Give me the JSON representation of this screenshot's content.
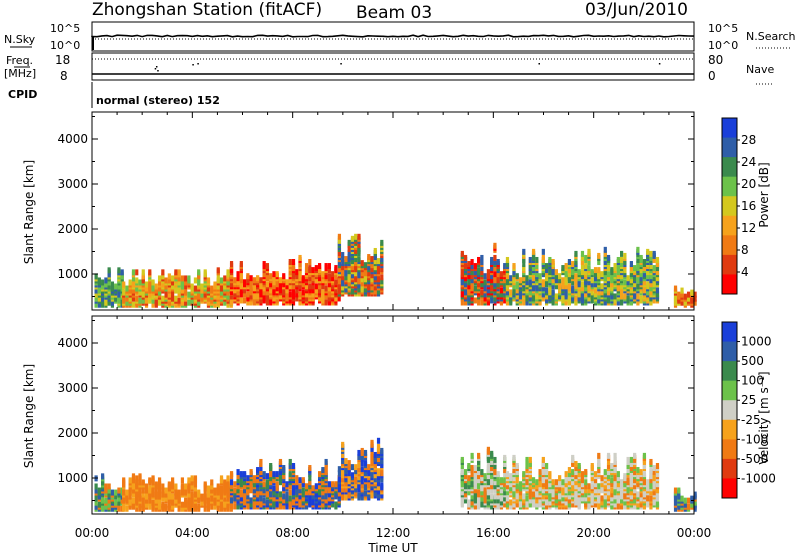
{
  "header": {
    "station": "Zhongshan Station (fitACF)",
    "beam": "Beam 03",
    "date": "03/Jun/2010"
  },
  "aux": {
    "nsky_label": "N.Sky",
    "nsky_ticks": [
      "10^5",
      "10^0"
    ],
    "nsearch_label": "N.Search",
    "nsearch_ticks": [
      "10^5",
      "10^0"
    ],
    "freq_label_line1": "Freq.",
    "freq_label_line2": "[MHz]",
    "freq_ticks": [
      "18",
      "8"
    ],
    "nave_label": "Nave",
    "nave_ticks": [
      "80",
      "0"
    ],
    "cpid_label": "CPID",
    "cpid_text": "normal (stereo) 152"
  },
  "x_axis": {
    "ticks": [
      "00:00",
      "04:00",
      "08:00",
      "12:00",
      "16:00",
      "20:00",
      "00:00"
    ],
    "label": "Time UT"
  },
  "colors": {
    "power_scale": [
      "#1a3fd9",
      "#2f5ea8",
      "#3a8a4d",
      "#6cc24a",
      "#d4c81e",
      "#f6a21c",
      "#f07a14",
      "#e03a10",
      "#ff0000"
    ],
    "velocity_scale": [
      "#1a3fd9",
      "#2f5ea8",
      "#3a8a4d",
      "#6cc24a",
      "#cfcfc6",
      "#f6a21c",
      "#f07a14",
      "#e03a10",
      "#ff0000"
    ]
  },
  "chart_data": [
    {
      "type": "heatmap",
      "name": "power",
      "ylabel": "Slant Range [km]",
      "y_ticks": [
        "1000",
        "2000",
        "3000",
        "4000"
      ],
      "ylim": [
        200,
        4600
      ],
      "xlim": [
        0,
        24
      ],
      "colorbar_label": "Power [dB]",
      "colorbar_ticks": [
        "4",
        "8",
        "12",
        "16",
        "20",
        "24",
        "28"
      ],
      "colorbar_range": [
        0,
        32
      ],
      "blobs": [
        {
          "t0": 0.1,
          "t1": 1.2,
          "r0": 250,
          "r1": 1050,
          "c": [
            1,
            2,
            3,
            4
          ]
        },
        {
          "t0": 1.2,
          "t1": 5.5,
          "r0": 250,
          "r1": 1050,
          "c": [
            3,
            4,
            5,
            6,
            7
          ]
        },
        {
          "t0": 5.5,
          "t1": 9.8,
          "r0": 300,
          "r1": 1300,
          "c": [
            5,
            6,
            7,
            8
          ]
        },
        {
          "t0": 9.8,
          "t1": 11.5,
          "r0": 500,
          "r1": 1900,
          "c": [
            1,
            2,
            4,
            6,
            7
          ]
        },
        {
          "t0": 14.7,
          "t1": 16.5,
          "r0": 300,
          "r1": 1600,
          "c": [
            1,
            2,
            6,
            7,
            8
          ]
        },
        {
          "t0": 16.5,
          "t1": 22.5,
          "r0": 300,
          "r1": 1500,
          "c": [
            1,
            2,
            3,
            4,
            5
          ]
        },
        {
          "t0": 23.2,
          "t1": 24.0,
          "r0": 250,
          "r1": 700,
          "c": [
            4,
            6,
            7
          ]
        }
      ]
    },
    {
      "type": "heatmap",
      "name": "velocity",
      "ylabel": "Slant Range [km]",
      "y_ticks": [
        "1000",
        "2000",
        "3000",
        "4000"
      ],
      "ylim": [
        200,
        4600
      ],
      "xlim": [
        0,
        24
      ],
      "colorbar_label": "Velocity [m s⁻¹]",
      "colorbar_ticks": [
        "1000",
        "500",
        "100",
        "25",
        "-25",
        "-100",
        "-500",
        "-1000"
      ],
      "blobs": [
        {
          "t0": 0.1,
          "t1": 1.2,
          "r0": 250,
          "r1": 1050,
          "c": [
            1,
            2,
            3,
            6
          ]
        },
        {
          "t0": 1.2,
          "t1": 5.5,
          "r0": 250,
          "r1": 1050,
          "c": [
            6,
            6,
            6,
            5
          ]
        },
        {
          "t0": 5.5,
          "t1": 9.8,
          "r0": 300,
          "r1": 1300,
          "c": [
            0,
            1,
            2,
            6,
            6
          ]
        },
        {
          "t0": 9.8,
          "t1": 11.5,
          "r0": 500,
          "r1": 1900,
          "c": [
            0,
            1,
            6,
            5
          ]
        },
        {
          "t0": 14.7,
          "t1": 16.5,
          "r0": 300,
          "r1": 1600,
          "c": [
            2,
            3,
            4,
            4,
            6
          ]
        },
        {
          "t0": 16.5,
          "t1": 22.5,
          "r0": 300,
          "r1": 1500,
          "c": [
            4,
            4,
            3,
            5,
            6
          ]
        },
        {
          "t0": 23.2,
          "t1": 24.0,
          "r0": 250,
          "r1": 700,
          "c": [
            1,
            3,
            6
          ]
        }
      ]
    }
  ]
}
